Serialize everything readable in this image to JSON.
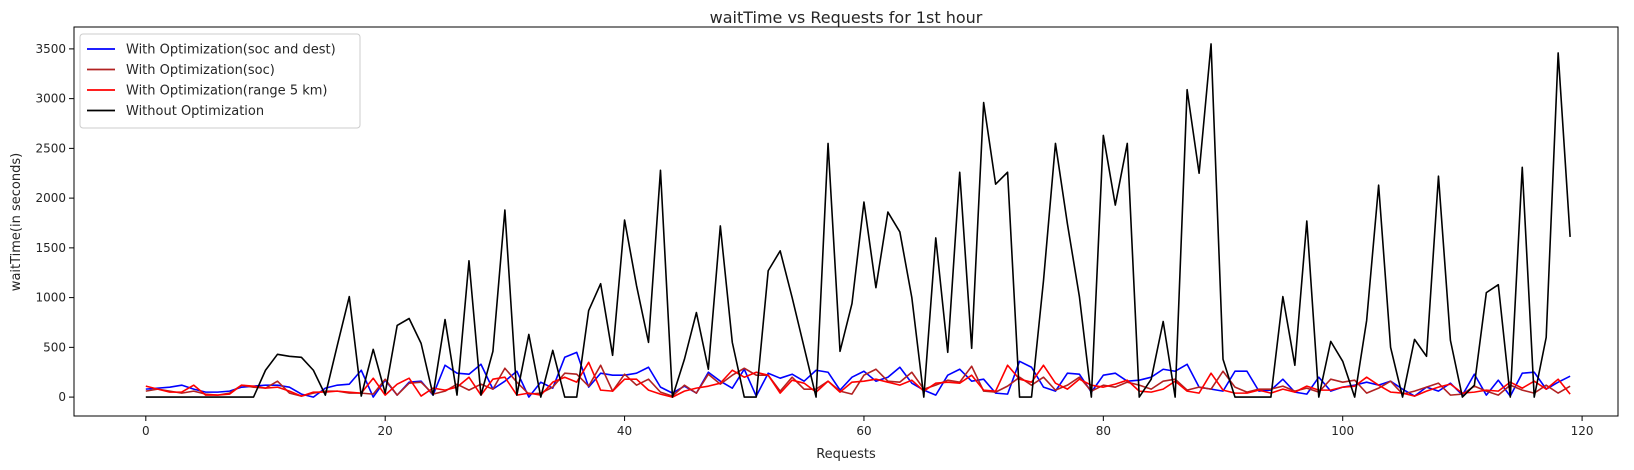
{
  "chart_data": {
    "type": "line",
    "title": "waitTime vs Requests for 1st hour",
    "xlabel": "Requests",
    "ylabel": "waitTime(in seconds)",
    "xlim": [
      -6,
      123
    ],
    "ylim": [
      -190,
      3720
    ],
    "xticks": [
      0,
      20,
      40,
      60,
      80,
      100,
      120
    ],
    "yticks": [
      0,
      500,
      1000,
      1500,
      2000,
      2500,
      3000,
      3500
    ],
    "grid": false,
    "legend_position": "top-left",
    "x": [
      0,
      1,
      2,
      3,
      4,
      5,
      6,
      7,
      8,
      9,
      10,
      11,
      12,
      13,
      14,
      15,
      16,
      17,
      18,
      19,
      20,
      21,
      22,
      23,
      24,
      25,
      26,
      27,
      28,
      29,
      30,
      31,
      32,
      33,
      34,
      35,
      36,
      37,
      38,
      39,
      40,
      41,
      42,
      43,
      44,
      45,
      46,
      47,
      48,
      49,
      50,
      51,
      52,
      53,
      54,
      55,
      56,
      57,
      58,
      59,
      60,
      61,
      62,
      63,
      64,
      65,
      66,
      67,
      68,
      69,
      70,
      71,
      72,
      73,
      74,
      75,
      76,
      77,
      78,
      79,
      80,
      81,
      82,
      83,
      84,
      85,
      86,
      87,
      88,
      89,
      90,
      91,
      92,
      93,
      94,
      95,
      96,
      97,
      98,
      99,
      100,
      101,
      102,
      103,
      104,
      105,
      106,
      107,
      108,
      109,
      110,
      111,
      112,
      113,
      114,
      115,
      116,
      117,
      118,
      119
    ],
    "series": [
      {
        "name": "With Optimization(soc and dest)",
        "color": "#0000ff",
        "values": [
          80,
          90,
          100,
          120,
          80,
          50,
          50,
          60,
          100,
          110,
          120,
          120,
          100,
          30,
          0,
          90,
          120,
          130,
          270,
          0,
          170,
          20,
          150,
          160,
          20,
          320,
          240,
          230,
          330,
          80,
          160,
          260,
          0,
          150,
          90,
          400,
          450,
          100,
          240,
          220,
          220,
          240,
          300,
          100,
          40,
          110,
          40,
          250,
          160,
          90,
          280,
          10,
          240,
          190,
          230,
          160,
          270,
          250,
          70,
          200,
          260,
          160,
          200,
          300,
          140,
          70,
          20,
          220,
          280,
          160,
          180,
          40,
          30,
          360,
          300,
          100,
          60,
          240,
          230,
          50,
          220,
          240,
          160,
          170,
          200,
          280,
          260,
          330,
          100,
          80,
          60,
          260,
          260,
          60,
          70,
          180,
          50,
          30,
          200,
          60,
          100,
          120,
          150,
          120,
          160,
          80,
          10,
          100,
          60,
          140,
          20,
          230,
          20,
          170,
          10,
          240,
          250,
          80,
          150,
          210
        ]
      },
      {
        "name": "With Optimization(soc)",
        "color": "#b22222",
        "values": [
          60,
          80,
          60,
          40,
          60,
          30,
          20,
          40,
          120,
          100,
          90,
          160,
          40,
          10,
          40,
          60,
          60,
          40,
          40,
          30,
          180,
          20,
          140,
          150,
          30,
          60,
          130,
          70,
          130,
          80,
          290,
          150,
          30,
          40,
          100,
          240,
          230,
          110,
          320,
          60,
          230,
          120,
          180,
          50,
          10,
          120,
          40,
          230,
          130,
          220,
          290,
          220,
          220,
          60,
          200,
          80,
          80,
          160,
          60,
          30,
          220,
          280,
          160,
          150,
          250,
          80,
          120,
          170,
          150,
          310,
          60,
          50,
          110,
          200,
          120,
          200,
          70,
          120,
          200,
          60,
          120,
          100,
          150,
          120,
          80,
          160,
          180,
          70,
          100,
          80,
          260,
          100,
          50,
          80,
          80,
          110,
          60,
          90,
          50,
          180,
          150,
          170,
          40,
          90,
          160,
          30,
          60,
          100,
          140,
          20,
          30,
          110,
          60,
          20,
          120,
          70,
          40,
          120,
          40,
          110
        ]
      },
      {
        "name": "With Optimization(range 5 km)",
        "color": "#ff0000",
        "values": [
          110,
          80,
          50,
          50,
          120,
          20,
          20,
          30,
          120,
          110,
          90,
          100,
          60,
          10,
          50,
          50,
          60,
          50,
          40,
          190,
          20,
          130,
          190,
          10,
          90,
          70,
          100,
          200,
          20,
          180,
          200,
          20,
          40,
          20,
          150,
          200,
          150,
          350,
          70,
          60,
          180,
          180,
          70,
          30,
          0,
          60,
          90,
          110,
          140,
          270,
          200,
          250,
          220,
          40,
          170,
          140,
          50,
          160,
          50,
          150,
          160,
          180,
          150,
          120,
          170,
          60,
          140,
          150,
          140,
          220,
          70,
          60,
          320,
          180,
          150,
          320,
          140,
          80,
          180,
          120,
          100,
          130,
          170,
          60,
          50,
          80,
          160,
          60,
          40,
          240,
          70,
          40,
          40,
          70,
          40,
          80,
          50,
          110,
          70,
          70,
          100,
          110,
          200,
          120,
          50,
          40,
          10,
          60,
          100,
          130,
          40,
          50,
          70,
          60,
          150,
          90,
          160,
          80,
          180,
          30
        ]
      },
      {
        "name": "Without Optimization",
        "color": "#000000",
        "values": [
          0,
          0,
          0,
          0,
          0,
          0,
          0,
          0,
          0,
          0,
          270,
          430,
          410,
          400,
          270,
          20,
          520,
          1010,
          10,
          480,
          40,
          720,
          790,
          540,
          20,
          780,
          20,
          1370,
          20,
          460,
          1880,
          20,
          630,
          0,
          470,
          0,
          0,
          870,
          1140,
          420,
          1780,
          1120,
          550,
          2280,
          0,
          380,
          850,
          280,
          1720,
          550,
          0,
          0,
          1270,
          1470,
          1000,
          500,
          0,
          2550,
          460,
          940,
          1960,
          1100,
          1860,
          1660,
          1000,
          0,
          1600,
          450,
          2260,
          490,
          2960,
          2140,
          2260,
          0,
          0,
          1170,
          2550,
          1740,
          1010,
          0,
          2630,
          1930,
          2550,
          0,
          180,
          760,
          0,
          3090,
          2250,
          3550,
          380,
          0,
          0,
          0,
          0,
          1010,
          320,
          1770,
          0,
          560,
          360,
          0,
          770,
          2130,
          500,
          0,
          580,
          410,
          2220,
          570,
          0,
          120,
          1050,
          1130,
          0,
          2310,
          0,
          600,
          3460,
          1610
        ]
      }
    ]
  }
}
